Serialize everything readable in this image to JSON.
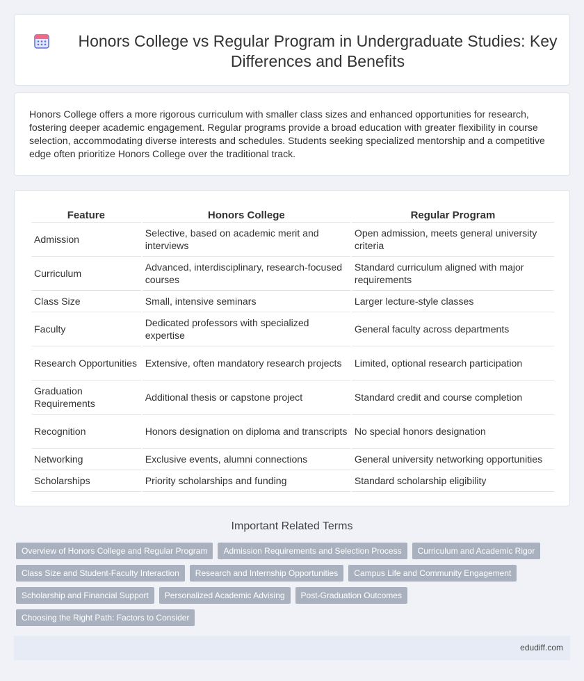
{
  "header": {
    "title": "Honors College vs Regular Program in Undergraduate Studies: Key Differences and Benefits",
    "icon": "calendar-icon"
  },
  "intro": {
    "text": "Honors College offers a more rigorous curriculum with smaller class sizes and enhanced opportunities for research, fostering deeper academic engagement. Regular programs provide a broad education with greater flexibility in course selection, accommodating diverse interests and schedules. Students seeking specialized mentorship and a competitive edge often prioritize Honors College over the traditional track."
  },
  "table": {
    "headers": [
      "Feature",
      "Honors College",
      "Regular Program"
    ],
    "rows": [
      [
        "Admission",
        "Selective, based on academic merit and interviews",
        "Open admission, meets general university criteria"
      ],
      [
        "Curriculum",
        "Advanced, interdisciplinary, research-focused courses",
        "Standard curriculum aligned with major requirements"
      ],
      [
        "Class Size",
        "Small, intensive seminars",
        "Larger lecture-style classes"
      ],
      [
        "Faculty",
        "Dedicated professors with specialized expertise",
        "General faculty across departments"
      ],
      [
        "Research Opportunities",
        "Extensive, often mandatory research projects",
        "Limited, optional research participation"
      ],
      [
        "Graduation Requirements",
        "Additional thesis or capstone project",
        "Standard credit and course completion"
      ],
      [
        "Recognition",
        "Honors designation on diploma and transcripts",
        "No special honors designation"
      ],
      [
        "Networking",
        "Exclusive events, alumni connections",
        "General university networking opportunities"
      ],
      [
        "Scholarships",
        "Priority scholarships and funding",
        "Standard scholarship eligibility"
      ]
    ]
  },
  "related": {
    "title": "Important Related Terms",
    "tags": [
      "Overview of Honors College and Regular Program",
      "Admission Requirements and Selection Process",
      "Curriculum and Academic Rigor",
      "Class Size and Student-Faculty Interaction",
      "Research and Internship Opportunities",
      "Campus Life and Community Engagement",
      "Scholarship and Financial Support",
      "Personalized Academic Advising",
      "Post-Graduation Outcomes",
      "Choosing the Right Path: Factors to Consider"
    ]
  },
  "footer": {
    "site": "edudiff.com"
  },
  "colors": {
    "background": "#f0f2f8",
    "tag": "#a9b1bf",
    "footer": "#e6ebf5",
    "icon_accent": "#5b6ee1",
    "icon_top": "#f06a8a"
  }
}
